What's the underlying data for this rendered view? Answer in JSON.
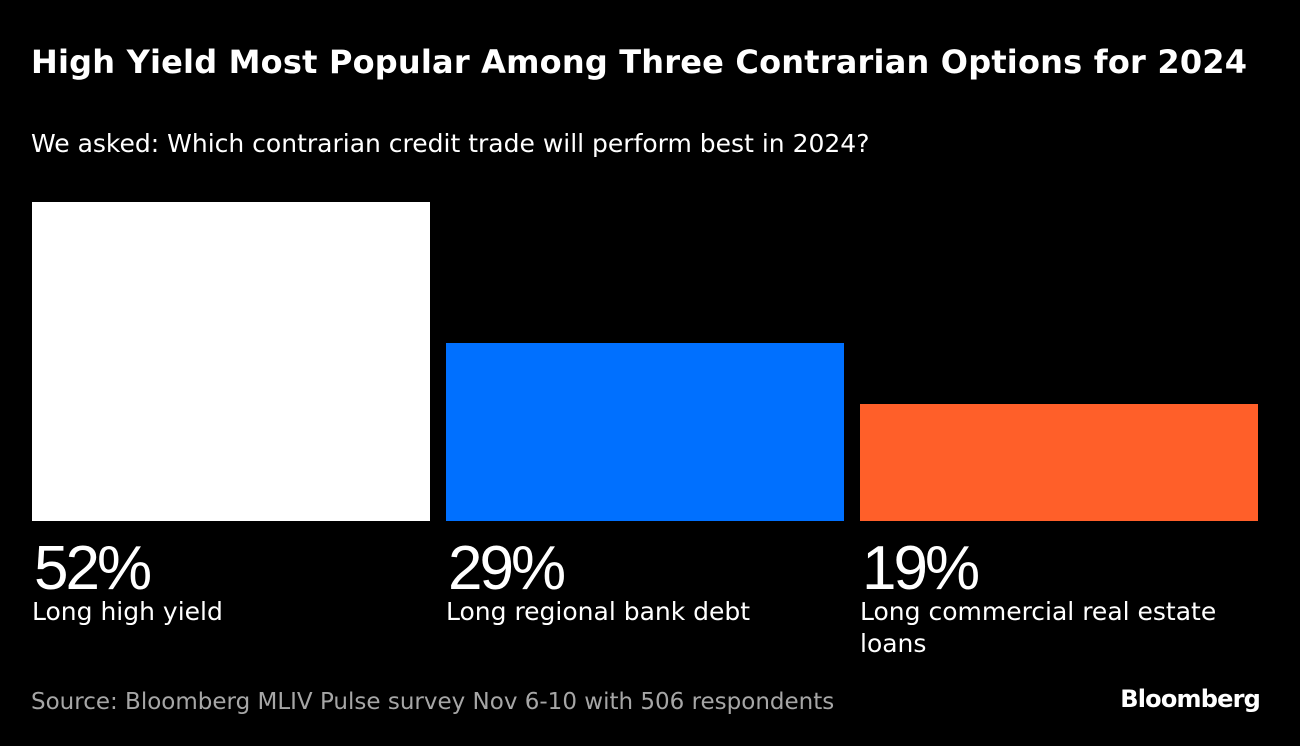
{
  "header": {
    "title": "High Yield Most Popular Among Three Contrarian Options for 2024",
    "subtitle": "We asked: Which contrarian credit trade will perform best in 2024?"
  },
  "chart_data": {
    "type": "bar",
    "categories": [
      "Long high yield",
      "Long regional bank debt",
      "Long commercial real estate loans"
    ],
    "values": [
      52,
      29,
      19
    ],
    "value_labels": [
      "52%",
      "29%",
      "19%"
    ],
    "colors": [
      "#ffffff",
      "#0070ff",
      "#ff5f29"
    ],
    "unit": "%",
    "ylim": [
      0,
      52
    ],
    "grid": false,
    "legend": "none"
  },
  "footer": {
    "source": "Source: Bloomberg MLIV Pulse survey Nov 6-10 with 506 respondents",
    "brand": "Bloomberg"
  }
}
